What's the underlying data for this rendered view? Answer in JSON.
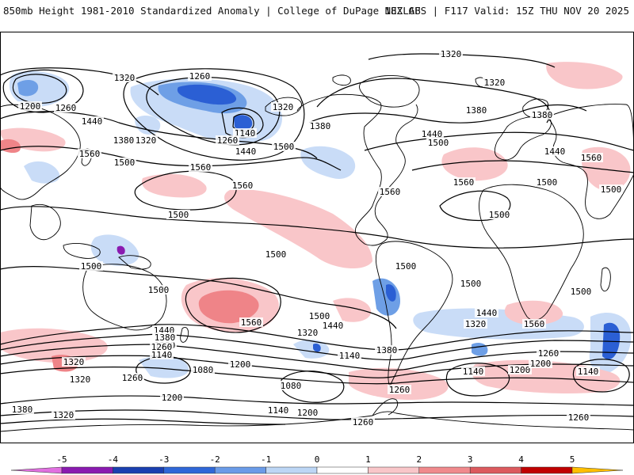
{
  "header": {
    "title": "850mb Height 1981-2010 Standardized Anomaly | College of DuPage NEXLAB",
    "run": "18Z GFS | F117 Valid: 15Z THU NOV 20 2025"
  },
  "contour_labels": [
    {
      "id": "lbl-1320-npac-w",
      "text": "1320",
      "lon": -155,
      "lat": 72
    },
    {
      "id": "lbl-1200-siberia",
      "text": "1200",
      "lon": -162,
      "lat": 62
    },
    {
      "id": "lbl-1260-siberia",
      "text": "1260",
      "lon": -143,
      "lat": 63
    },
    {
      "id": "lbl-1260-arctic",
      "text": "1260",
      "lon": -67,
      "lat": 77
    },
    {
      "id": "lbl-1140-low",
      "text": "1140",
      "lon": -42,
      "lat": 51
    },
    {
      "id": "lbl-1260-canada",
      "text": "1260",
      "lon": -49,
      "lat": 46
    },
    {
      "id": "lbl-1320-hudson",
      "text": "1320",
      "lon": -6,
      "lat": 62
    },
    {
      "id": "lbl-1380-lakes",
      "text": "1380",
      "lon": 2,
      "lat": 51
    },
    {
      "id": "lbl-1320-top",
      "text": "1320",
      "lon": 76,
      "lat": 82
    },
    {
      "id": "lbl-1320-europe",
      "text": "1320",
      "lon": 104,
      "lat": 72
    },
    {
      "id": "lbl-1380-atl",
      "text": "1380",
      "lon": 95,
      "lat": 61
    },
    {
      "id": "lbl-1380-urals",
      "text": "1380",
      "lon": 142,
      "lat": 54
    },
    {
      "id": "lbl-1440-npac",
      "text": "1440",
      "lon": -148,
      "lat": 52
    },
    {
      "id": "lbl-1380-npac",
      "text": "1380",
      "lon": -123,
      "lat": 45
    },
    {
      "id": "lbl-1320-npac-c",
      "text": "1320",
      "lon": -109,
      "lat": 45
    },
    {
      "id": "lbl-1440-npac-c",
      "text": "1440",
      "lon": -44,
      "lat": 35
    },
    {
      "id": "lbl-1500-npac-c",
      "text": "1500",
      "lon": -10,
      "lat": 35
    },
    {
      "id": "lbl-1440-atl",
      "text": "1440",
      "lon": 66,
      "lat": 45
    },
    {
      "id": "lbl-1500-atl",
      "text": "1500",
      "lon": 70,
      "lat": 40
    },
    {
      "id": "lbl-1440-asia",
      "text": "1440",
      "lon": 143,
      "lat": 32
    },
    {
      "id": "lbl-1560-japan",
      "text": "1560",
      "lon": -164,
      "lat": 29
    },
    {
      "id": "lbl-1560-pac",
      "text": "1560",
      "lon": -136,
      "lat": 35
    },
    {
      "id": "lbl-1500-pac",
      "text": "1500",
      "lon": -123,
      "lat": 31
    },
    {
      "id": "lbl-1560-pac-c",
      "text": "1560",
      "lon": -75,
      "lat": 24
    },
    {
      "id": "lbl-1560-pac-e",
      "text": "1560",
      "lon": -24,
      "lat": 8
    },
    {
      "id": "lbl-1560-gulf",
      "text": "1560",
      "lon": 40,
      "lat": -3
    },
    {
      "id": "lbl-1560-atl-e",
      "text": "1560",
      "lon": 106,
      "lat": -6
    },
    {
      "id": "lbl-1500-arabia",
      "text": "1500",
      "lon": 123,
      "lat": 7
    },
    {
      "id": "lbl-1560-india",
      "text": "1560",
      "lon": 167,
      "lat": 23
    },
    {
      "id": "lbl-1500-india",
      "text": "1500",
      "lon": 155,
      "lat": -2
    },
    {
      "id": "lbl-1500-africa",
      "text": "1500",
      "lon": 81,
      "lat": -42
    },
    {
      "id": "lbl-1500-eq",
      "text": "1500",
      "lon": -92,
      "lat": -21
    },
    {
      "id": "lbl-1500-spac",
      "text": "1500",
      "lon": -15,
      "lat": -50
    },
    {
      "id": "lbl-1500-aus",
      "text": "1500",
      "lon": -145,
      "lat": -58
    },
    {
      "id": "lbl-1500-aus-e",
      "text": "1500",
      "lon": -129,
      "lat": -79
    },
    {
      "id": "lbl-1500-samer",
      "text": "1500",
      "lon": 47,
      "lat": -61
    },
    {
      "id": "lbl-1500-satl",
      "text": "1500",
      "lon": 88,
      "lat": -88
    },
    {
      "id": "lbl-1500-sio",
      "text": "1500",
      "lon": 184,
      "lat": -108
    },
    {
      "id": "lbl-1500-sio-2",
      "text": "1500",
      "lon": 47,
      "lat": -118
    },
    {
      "id": "lbl-1440-sio",
      "text": "1440",
      "lon": 137,
      "lat": -116
    },
    {
      "id": "lbl-1560-sio",
      "text": "1560",
      "lon": 160,
      "lat": -127
    },
    {
      "id": "lbl-1560-spac-e",
      "text": "1560",
      "lon": -59,
      "lat": -127
    },
    {
      "id": "lbl-1440-spac",
      "text": "1440",
      "lon": -122,
      "lat": -138
    },
    {
      "id": "lbl-1380-spac",
      "text": "1380",
      "lon": -118,
      "lat": -147
    },
    {
      "id": "lbl-1320-spac",
      "text": "1320",
      "lon": -118,
      "lat": -157
    },
    {
      "id": "lbl-1260-spac",
      "text": "1260",
      "lon": -126,
      "lat": -166
    },
    {
      "id": "lbl-1140-spac",
      "text": "1140",
      "lon": -121,
      "lat": -175
    },
    {
      "id": "lbl-1080-spac",
      "text": "1080",
      "lon": -66,
      "lat": -189
    },
    {
      "id": "lbl-1200-spac",
      "text": "1200",
      "lon": -13,
      "lat": -180
    },
    {
      "id": "lbl-1440-spac-e",
      "text": "1440",
      "lon": 20,
      "lat": -130
    },
    {
      "id": "lbl-1320-spac-e",
      "text": "1320",
      "lon": -8,
      "lat": -141
    },
    {
      "id": "lbl-1140-spac-e",
      "text": "1140",
      "lon": 42,
      "lat": -169
    },
    {
      "id": "lbl-1080-spac-e",
      "text": "1080",
      "lon": -26,
      "lat": -206
    },
    {
      "id": "lbl-1380-drake",
      "text": "1380",
      "lon": 86,
      "lat": -162
    },
    {
      "id": "lbl-1260-drake",
      "text": "1260",
      "lon": 104,
      "lat": -212
    },
    {
      "id": "lbl-1320-satl",
      "text": "1320",
      "lon": 129,
      "lat": -126
    },
    {
      "id": "lbl-1140-satl",
      "text": "1140",
      "lon": 128,
      "lat": -189
    },
    {
      "id": "lbl-1200-satl",
      "text": "1200",
      "lon": 174,
      "lat": -189
    },
    {
      "id": "lbl-1200-satl-2",
      "text": "1200",
      "lon": 194,
      "lat": -177
    },
    {
      "id": "lbl-1260-satl",
      "text": "1260",
      "lon": 185,
      "lat": -166
    },
    {
      "id": "lbl-1140-sio-e",
      "text": "1140",
      "lon": 236,
      "lat": -189
    },
    {
      "id": "lbl-1260-sio-e",
      "text": "1260",
      "lon": 218,
      "lat": -245
    },
    {
      "id": "lbl-1320-wpac",
      "text": "1320",
      "lon": -158,
      "lat": -168
    },
    {
      "id": "lbl-1320-wpac-2",
      "text": "1320",
      "lon": -162,
      "lat": -187
    },
    {
      "id": "lbl-1260-wpac",
      "text": "1260",
      "lon": -99,
      "lat": -187
    },
    {
      "id": "lbl-1200-wpac",
      "text": "1200",
      "lon": -108,
      "lat": -210
    },
    {
      "id": "lbl-1380-wpac",
      "text": "1380",
      "lon": -185,
      "lat": -227
    },
    {
      "id": "lbl-1320-wpac-3",
      "text": "1320",
      "lon": -155,
      "lat": -234
    },
    {
      "id": "lbl-1140-ant",
      "text": "1140",
      "lon": -40,
      "lat": -228
    },
    {
      "id": "lbl-1200-ant",
      "text": "1200",
      "lon": -11,
      "lat": -230
    },
    {
      "id": "lbl-1260-ant",
      "text": "1260",
      "lon": 74,
      "lat": -242
    }
  ],
  "legend": {
    "ticks": [
      "-5",
      "-4",
      "-3",
      "-2",
      "-1",
      "0",
      "1",
      "2",
      "3",
      "4",
      "5"
    ],
    "colors": [
      "#e070e0",
      "#8a1ab0",
      "#1a3fb0",
      "#2f67d8",
      "#6a9be8",
      "#bcd6f5",
      "#ffffff",
      "#f9c6c9",
      "#f08a8d",
      "#dc5a5e",
      "#c00000",
      "#ff8c00",
      "#ffbf00"
    ]
  },
  "colors": {
    "neg1": "#c9dcf7",
    "neg2": "#6e9fe6",
    "neg3": "#2b5fd4",
    "neg4": "#1a3fb0",
    "neg5": "#8a1ab0",
    "pos1": "#f9c6c9",
    "pos2": "#ef8488",
    "contour": "#000000",
    "coast": "#000000"
  }
}
